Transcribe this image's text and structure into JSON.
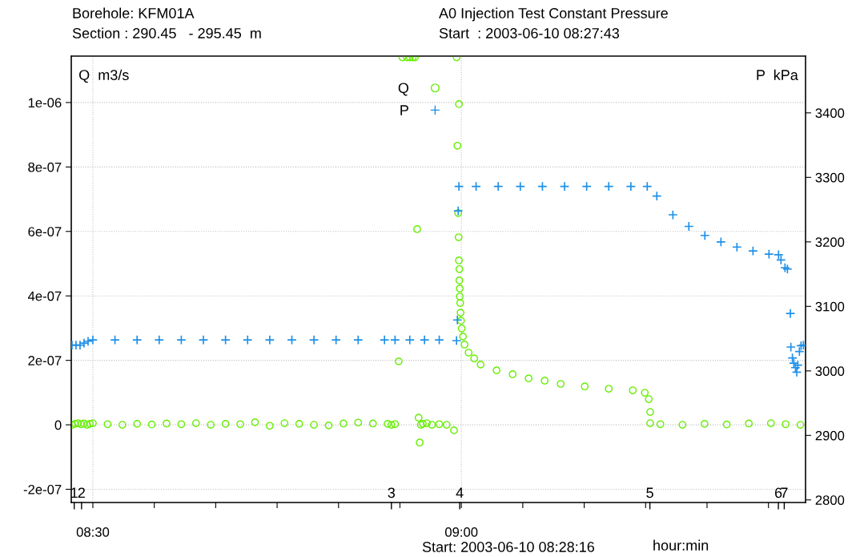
{
  "chart_data": {
    "type": "scatter",
    "title": "Borehole: KFM01A",
    "subtitle": "Section : 290.45   - 295.45  m",
    "annotations": [
      "A0 Injection Test Constant Pressure",
      "Start  : 2003-06-10 08:27:43",
      "Start: 2003-06-10 08:28:16",
      "1",
      "2",
      "3",
      "4",
      "5",
      "6",
      "7"
    ],
    "xlabel": "hour:min",
    "ylabel": "Q  m3/s",
    "y2label": "P  kPa",
    "xlim": [
      8.4707,
      9.467
    ],
    "ylim": [
      -2.41e-07,
      1.144e-06
    ],
    "y2lim": [
      2796,
      3488
    ],
    "xticks": [
      {
        "value": 8.5,
        "label": "08:30"
      },
      {
        "value": 8.58333,
        "label": null
      },
      {
        "value": 8.66667,
        "label": null
      },
      {
        "value": 8.75,
        "label": null
      },
      {
        "value": 8.83333,
        "label": null
      },
      {
        "value": 8.91667,
        "label": null
      },
      {
        "value": 9.0,
        "label": "09:00"
      },
      {
        "value": 9.08333,
        "label": null
      },
      {
        "value": 9.16667,
        "label": null
      },
      {
        "value": 9.25,
        "label": null
      },
      {
        "value": 9.33333,
        "label": null
      },
      {
        "value": 9.41667,
        "label": null
      }
    ],
    "yticks": [
      {
        "value": -2e-07,
        "label": "-2e-07"
      },
      {
        "value": 0,
        "label": "0"
      },
      {
        "value": 2e-07,
        "label": "2e-07"
      },
      {
        "value": 4e-07,
        "label": "4e-07"
      },
      {
        "value": 6e-07,
        "label": "6e-07"
      },
      {
        "value": 8e-07,
        "label": "8e-07"
      },
      {
        "value": 1e-06,
        "label": "1e-06"
      }
    ],
    "y2ticks": [
      2800,
      2900,
      3000,
      3100,
      3200,
      3300,
      3400
    ],
    "grid": true,
    "legend": "top",
    "series": [
      {
        "name": "Q",
        "color": "#66ee00",
        "marker": "circle",
        "x": [
          8.4717,
          8.476,
          8.48,
          8.484,
          8.488,
          8.492,
          8.496,
          8.5,
          8.52,
          8.54,
          8.56,
          8.58,
          8.6,
          8.62,
          8.64,
          8.66,
          8.68,
          8.7,
          8.72,
          8.74,
          8.76,
          8.78,
          8.8,
          8.82,
          8.84,
          8.86,
          8.88,
          8.9,
          8.905,
          8.91,
          8.915,
          8.92,
          8.926,
          8.93,
          8.934,
          8.937,
          8.94,
          8.942,
          8.945,
          8.9435,
          8.9478,
          8.9532,
          8.96,
          8.97,
          8.98,
          8.99,
          8.9935,
          8.9967,
          8.9946,
          8.9957,
          8.9963,
          8.9967,
          8.9973,
          8.9973,
          8.9978,
          8.9978,
          8.9984,
          8.9989,
          8.9995,
          9.0005,
          9.0022,
          9.0043,
          9.0098,
          9.0174,
          9.0261,
          9.0478,
          9.0696,
          9.0913,
          9.113,
          9.1348,
          9.1674,
          9.2,
          9.2326,
          9.2489,
          9.2543,
          9.2562,
          9.2562,
          9.27,
          9.3,
          9.33,
          9.36,
          9.39,
          9.42,
          9.44,
          9.46
        ],
        "values": [
          0,
          3e-09,
          5e-09,
          2e-09,
          4e-09,
          0,
          3e-09,
          5e-09,
          2e-09,
          0,
          3e-09,
          1e-09,
          4e-09,
          2e-09,
          5e-09,
          0,
          3e-09,
          2e-09,
          8e-09,
          -3e-09,
          5e-09,
          3e-09,
          0,
          -2e-09,
          4e-09,
          7e-09,
          4e-09,
          3e-09,
          0,
          2e-09,
          1.97e-07,
          1.14e-06,
          1.14e-06,
          1.14e-06,
          1.14e-06,
          1.14e-06,
          6.07e-07,
          2.2e-08,
          0,
          -5.5e-08,
          3e-09,
          5e-09,
          0,
          2e-09,
          0,
          -1.7e-08,
          1.14e-06,
          9.95e-07,
          8.66e-07,
          6.57e-07,
          5.82e-07,
          5.1e-07,
          4.83e-07,
          4.48e-07,
          4.23e-07,
          3.98e-07,
          3.78e-07,
          3.48e-07,
          3.23e-07,
          2.99e-07,
          2.74e-07,
          2.49e-07,
          2.24e-07,
          2.06e-07,
          1.87e-07,
          1.69e-07,
          1.57e-07,
          1.44e-07,
          1.37e-07,
          1.27e-07,
          1.19e-07,
          1.12e-07,
          1.07e-07,
          9.95e-08,
          7.96e-08,
          3.98e-08,
          5e-09,
          2e-09,
          0,
          3e-09,
          1e-09,
          4e-09,
          5e-09,
          2e-09,
          0
        ]
      },
      {
        "name": "P",
        "color": "#1e90e8",
        "marker": "cross",
        "axis": "y2",
        "x": [
          8.4717,
          8.4771,
          8.4826,
          8.488,
          8.4935,
          8.5,
          8.53,
          8.56,
          8.59,
          8.62,
          8.65,
          8.68,
          8.71,
          8.74,
          8.77,
          8.8,
          8.83,
          8.86,
          8.8957,
          8.91,
          8.93,
          8.95,
          8.97,
          8.9935,
          8.9946,
          8.9957,
          8.9967,
          9.02,
          9.05,
          9.08,
          9.11,
          9.14,
          9.17,
          9.2,
          9.23,
          9.2522,
          9.2652,
          9.287,
          9.3087,
          9.3304,
          9.3522,
          9.3739,
          9.3957,
          9.4174,
          9.4304,
          9.4337,
          9.4391,
          9.4424,
          9.4464,
          9.4471,
          9.4492,
          9.4511,
          9.4533,
          9.4551,
          9.4565,
          9.4587,
          9.4609,
          9.4641
        ],
        "values": [
          3040,
          3040,
          3040,
          3043,
          3046,
          3048,
          3048,
          3048,
          3048,
          3048,
          3048,
          3048,
          3048,
          3048,
          3048,
          3048,
          3048,
          3048,
          3048,
          3048,
          3048,
          3048,
          3048,
          3047,
          3079,
          3248,
          3286,
          3286,
          3286,
          3286,
          3286,
          3286,
          3286,
          3286,
          3286,
          3286,
          3271,
          3242,
          3224,
          3210,
          3200,
          3192,
          3186,
          3181,
          3180,
          3172,
          3160,
          3158,
          3089,
          3037,
          3020,
          3012,
          3005,
          2998,
          3009,
          3030,
          3039,
          3040
        ]
      }
    ]
  }
}
